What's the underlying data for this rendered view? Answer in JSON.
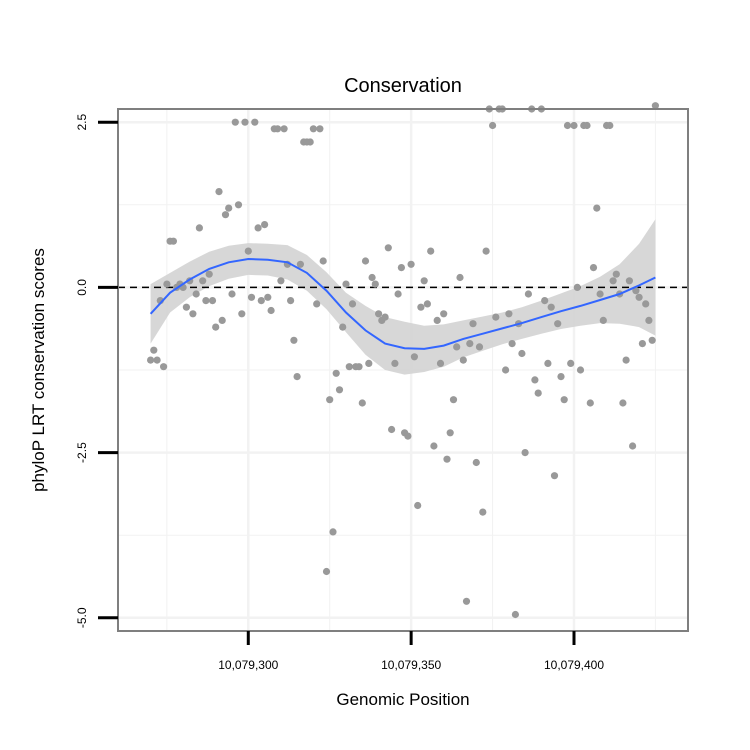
{
  "chart_data": {
    "type": "scatter",
    "title": "Conservation",
    "xlabel": "Genomic Position",
    "ylabel": "phyloP LRT conservation scores",
    "xlim": [
      10079260,
      10079435
    ],
    "ylim": [
      -5.2,
      2.7
    ],
    "x_ticks": [
      {
        "value": 10079300,
        "label": "10,079,300"
      },
      {
        "value": 10079350,
        "label": "10,079,350"
      },
      {
        "value": 10079400,
        "label": "10,079,400"
      }
    ],
    "y_ticks": [
      {
        "value": 2.5,
        "label": "2.5"
      },
      {
        "value": 0,
        "label": "0.0"
      },
      {
        "value": -2.5,
        "label": "-2.5"
      },
      {
        "value": -5,
        "label": "-5.0"
      }
    ],
    "grid": true,
    "reference_line": {
      "y": 0,
      "style": "dashed",
      "color": "#000000"
    },
    "colors": {
      "points": "#999999",
      "smooth_line": "#3366ff",
      "ribbon": "#d3d3d3",
      "panel_border": "#7f7f7f",
      "grid": "#f2f2f2"
    },
    "points": [
      {
        "x": 10079270,
        "y": -1.1
      },
      {
        "x": 10079271,
        "y": -0.95
      },
      {
        "x": 10079272,
        "y": -1.1
      },
      {
        "x": 10079273,
        "y": -0.2
      },
      {
        "x": 10079274,
        "y": -1.2
      },
      {
        "x": 10079275,
        "y": 0.05
      },
      {
        "x": 10079276,
        "y": 0.7
      },
      {
        "x": 10079277,
        "y": 0.7
      },
      {
        "x": 10079278,
        "y": 0.0
      },
      {
        "x": 10079279,
        "y": 0.05
      },
      {
        "x": 10079280,
        "y": 0.0
      },
      {
        "x": 10079281,
        "y": -0.3
      },
      {
        "x": 10079282,
        "y": 0.1
      },
      {
        "x": 10079283,
        "y": -0.4
      },
      {
        "x": 10079284,
        "y": -0.1
      },
      {
        "x": 10079285,
        "y": 0.9
      },
      {
        "x": 10079286,
        "y": 0.1
      },
      {
        "x": 10079287,
        "y": -0.2
      },
      {
        "x": 10079288,
        "y": 0.2
      },
      {
        "x": 10079289,
        "y": -0.2
      },
      {
        "x": 10079290,
        "y": -0.6
      },
      {
        "x": 10079291,
        "y": 1.45
      },
      {
        "x": 10079292,
        "y": -0.5
      },
      {
        "x": 10079293,
        "y": 1.1
      },
      {
        "x": 10079294,
        "y": 1.2
      },
      {
        "x": 10079295,
        "y": -0.1
      },
      {
        "x": 10079296,
        "y": 2.5
      },
      {
        "x": 10079297,
        "y": 1.25
      },
      {
        "x": 10079298,
        "y": -0.4
      },
      {
        "x": 10079299,
        "y": 2.5
      },
      {
        "x": 10079300,
        "y": 0.55
      },
      {
        "x": 10079301,
        "y": -0.15
      },
      {
        "x": 10079302,
        "y": 2.5
      },
      {
        "x": 10079303,
        "y": 0.9
      },
      {
        "x": 10079304,
        "y": -0.2
      },
      {
        "x": 10079305,
        "y": 0.95
      },
      {
        "x": 10079306,
        "y": -0.15
      },
      {
        "x": 10079307,
        "y": -0.35
      },
      {
        "x": 10079308,
        "y": 2.4
      },
      {
        "x": 10079309,
        "y": 2.4
      },
      {
        "x": 10079310,
        "y": 0.1
      },
      {
        "x": 10079311,
        "y": 2.4
      },
      {
        "x": 10079312,
        "y": 0.35
      },
      {
        "x": 10079313,
        "y": -0.2
      },
      {
        "x": 10079314,
        "y": -0.8
      },
      {
        "x": 10079315,
        "y": -1.35
      },
      {
        "x": 10079316,
        "y": 0.35
      },
      {
        "x": 10079317,
        "y": 2.2
      },
      {
        "x": 10079318,
        "y": 2.2
      },
      {
        "x": 10079319,
        "y": 2.2
      },
      {
        "x": 10079320,
        "y": 2.4
      },
      {
        "x": 10079321,
        "y": -0.25
      },
      {
        "x": 10079322,
        "y": 2.4
      },
      {
        "x": 10079323,
        "y": 0.4
      },
      {
        "x": 10079324,
        "y": -4.3
      },
      {
        "x": 10079325,
        "y": -1.7
      },
      {
        "x": 10079326,
        "y": -3.7
      },
      {
        "x": 10079327,
        "y": -1.3
      },
      {
        "x": 10079328,
        "y": -1.55
      },
      {
        "x": 10079329,
        "y": -0.6
      },
      {
        "x": 10079330,
        "y": 0.05
      },
      {
        "x": 10079331,
        "y": -1.2
      },
      {
        "x": 10079332,
        "y": -0.25
      },
      {
        "x": 10079333,
        "y": -1.2
      },
      {
        "x": 10079334,
        "y": -1.2
      },
      {
        "x": 10079335,
        "y": -1.75
      },
      {
        "x": 10079336,
        "y": 0.4
      },
      {
        "x": 10079337,
        "y": -1.15
      },
      {
        "x": 10079338,
        "y": 0.15
      },
      {
        "x": 10079339,
        "y": 0.05
      },
      {
        "x": 10079340,
        "y": -0.4
      },
      {
        "x": 10079341,
        "y": -0.5
      },
      {
        "x": 10079342,
        "y": -0.45
      },
      {
        "x": 10079343,
        "y": 0.6
      },
      {
        "x": 10079344,
        "y": -2.15
      },
      {
        "x": 10079345,
        "y": -1.15
      },
      {
        "x": 10079346,
        "y": -0.1
      },
      {
        "x": 10079347,
        "y": 0.3
      },
      {
        "x": 10079348,
        "y": -2.2
      },
      {
        "x": 10079349,
        "y": -2.25
      },
      {
        "x": 10079350,
        "y": 0.35
      },
      {
        "x": 10079351,
        "y": -1.05
      },
      {
        "x": 10079352,
        "y": -3.3
      },
      {
        "x": 10079353,
        "y": -0.3
      },
      {
        "x": 10079354,
        "y": 0.1
      },
      {
        "x": 10079355,
        "y": -0.25
      },
      {
        "x": 10079356,
        "y": 0.55
      },
      {
        "x": 10079357,
        "y": -2.4
      },
      {
        "x": 10079358,
        "y": -0.5
      },
      {
        "x": 10079359,
        "y": -1.15
      },
      {
        "x": 10079360,
        "y": -0.4
      },
      {
        "x": 10079361,
        "y": -2.6
      },
      {
        "x": 10079362,
        "y": -2.2
      },
      {
        "x": 10079363,
        "y": -1.7
      },
      {
        "x": 10079364,
        "y": -0.9
      },
      {
        "x": 10079365,
        "y": 0.15
      },
      {
        "x": 10079366,
        "y": -1.1
      },
      {
        "x": 10079367,
        "y": -4.75
      },
      {
        "x": 10079368,
        "y": -0.85
      },
      {
        "x": 10079369,
        "y": -0.55
      },
      {
        "x": 10079370,
        "y": -2.65
      },
      {
        "x": 10079371,
        "y": -0.9
      },
      {
        "x": 10079372,
        "y": -3.4
      },
      {
        "x": 10079373,
        "y": 0.55
      },
      {
        "x": 10079374,
        "y": 2.7
      },
      {
        "x": 10079375,
        "y": 2.45
      },
      {
        "x": 10079376,
        "y": -0.45
      },
      {
        "x": 10079377,
        "y": 2.7
      },
      {
        "x": 10079378,
        "y": 2.7
      },
      {
        "x": 10079379,
        "y": -1.25
      },
      {
        "x": 10079380,
        "y": -0.4
      },
      {
        "x": 10079381,
        "y": -0.85
      },
      {
        "x": 10079382,
        "y": -4.95
      },
      {
        "x": 10079383,
        "y": -0.55
      },
      {
        "x": 10079384,
        "y": -1.0
      },
      {
        "x": 10079385,
        "y": -2.5
      },
      {
        "x": 10079386,
        "y": -0.1
      },
      {
        "x": 10079387,
        "y": 2.7
      },
      {
        "x": 10079388,
        "y": -1.4
      },
      {
        "x": 10079389,
        "y": -1.6
      },
      {
        "x": 10079390,
        "y": 2.7
      },
      {
        "x": 10079391,
        "y": -0.2
      },
      {
        "x": 10079392,
        "y": -1.15
      },
      {
        "x": 10079393,
        "y": -0.3
      },
      {
        "x": 10079394,
        "y": -2.85
      },
      {
        "x": 10079395,
        "y": -0.55
      },
      {
        "x": 10079396,
        "y": -1.35
      },
      {
        "x": 10079397,
        "y": -1.7
      },
      {
        "x": 10079398,
        "y": 2.45
      },
      {
        "x": 10079399,
        "y": -1.15
      },
      {
        "x": 10079400,
        "y": 2.45
      },
      {
        "x": 10079401,
        "y": 0.0
      },
      {
        "x": 10079402,
        "y": -1.25
      },
      {
        "x": 10079403,
        "y": 2.45
      },
      {
        "x": 10079404,
        "y": 2.45
      },
      {
        "x": 10079405,
        "y": -1.75
      },
      {
        "x": 10079406,
        "y": 0.3
      },
      {
        "x": 10079407,
        "y": 1.2
      },
      {
        "x": 10079408,
        "y": -0.1
      },
      {
        "x": 10079409,
        "y": -0.5
      },
      {
        "x": 10079410,
        "y": 2.45
      },
      {
        "x": 10079411,
        "y": 2.45
      },
      {
        "x": 10079412,
        "y": 0.1
      },
      {
        "x": 10079413,
        "y": 0.2
      },
      {
        "x": 10079414,
        "y": -0.1
      },
      {
        "x": 10079415,
        "y": -1.75
      },
      {
        "x": 10079416,
        "y": -1.1
      },
      {
        "x": 10079417,
        "y": 0.1
      },
      {
        "x": 10079418,
        "y": -2.4
      },
      {
        "x": 10079419,
        "y": -0.05
      },
      {
        "x": 10079420,
        "y": -0.15
      },
      {
        "x": 10079421,
        "y": -0.85
      },
      {
        "x": 10079422,
        "y": -0.25
      },
      {
        "x": 10079423,
        "y": -0.5
      },
      {
        "x": 10079424,
        "y": -0.8
      },
      {
        "x": 10079425,
        "y": 2.75
      }
    ],
    "smooth": {
      "x": [
        10079270,
        10079276,
        10079282,
        10079288,
        10079294,
        10079300,
        10079306,
        10079312,
        10079318,
        10079324,
        10079330,
        10079336,
        10079342,
        10079348,
        10079354,
        10079360,
        10079366,
        10079372,
        10079378,
        10079384,
        10079390,
        10079396,
        10079402,
        10079408,
        10079414,
        10079420,
        10079425
      ],
      "y": [
        -0.4,
        -0.08,
        0.12,
        0.28,
        0.38,
        0.43,
        0.42,
        0.38,
        0.22,
        -0.05,
        -0.38,
        -0.65,
        -0.85,
        -0.92,
        -0.93,
        -0.88,
        -0.78,
        -0.7,
        -0.62,
        -0.54,
        -0.45,
        -0.36,
        -0.28,
        -0.19,
        -0.1,
        0.03,
        0.15
      ],
      "lower": [
        -0.85,
        -0.38,
        -0.15,
        0.02,
        0.13,
        0.19,
        0.18,
        0.12,
        -0.05,
        -0.33,
        -0.68,
        -1.02,
        -1.25,
        -1.32,
        -1.28,
        -1.2,
        -1.06,
        -0.96,
        -0.86,
        -0.78,
        -0.7,
        -0.63,
        -0.58,
        -0.54,
        -0.55,
        -0.6,
        -0.73
      ],
      "upper": [
        0.05,
        0.22,
        0.39,
        0.54,
        0.63,
        0.67,
        0.66,
        0.64,
        0.49,
        0.23,
        -0.08,
        -0.28,
        -0.45,
        -0.52,
        -0.58,
        -0.56,
        -0.5,
        -0.44,
        -0.38,
        -0.3,
        -0.2,
        -0.09,
        0.02,
        0.16,
        0.35,
        0.66,
        1.03
      ]
    }
  }
}
